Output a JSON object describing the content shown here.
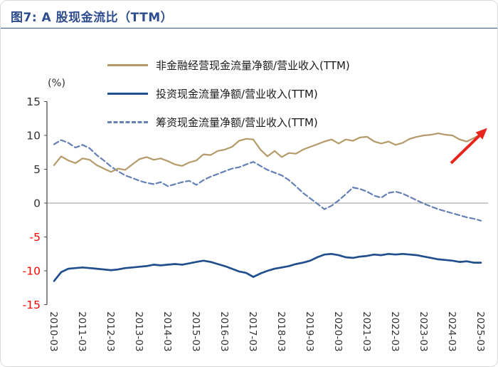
{
  "header": {
    "title": "图7: A 股现金流比（TTM）"
  },
  "colors": {
    "title": "#2e4d8f",
    "divider": "#33518f",
    "card_border": "#d9d9d9",
    "y_tick_positive": "#333333",
    "y_tick_negative": "#fe0000",
    "x_tick": "#333333",
    "zero_line": "#999999",
    "axis_line": "#4a4a4a"
  },
  "chart_data": {
    "type": "line",
    "title": "图7: A 股现金流比（TTM）",
    "unit_label": "(%)",
    "ylim": [
      -15,
      15
    ],
    "y_ticks": [
      15,
      10,
      5,
      0,
      -5,
      -10,
      -15
    ],
    "grid": "zero-line-only",
    "legend_position": "top-left",
    "x_tick_labels": [
      "2010-03",
      "2011-03",
      "2012-03",
      "2013-03",
      "2014-03",
      "2015-03",
      "2016-03",
      "2017-03",
      "2018-03",
      "2019-03",
      "2020-03",
      "2021-03",
      "2022-03",
      "2023-03",
      "2024-03",
      "2025-03"
    ],
    "x_frequency": "quarterly",
    "series": [
      {
        "name": "非金融经营现金流量净额/营业收入(TTM)",
        "color": "#b49a68",
        "style": "solid",
        "values": [
          5.6,
          6.9,
          6.3,
          5.9,
          6.6,
          6.4,
          5.6,
          5.1,
          4.6,
          5.1,
          4.9,
          5.7,
          6.5,
          6.8,
          6.4,
          6.6,
          6.2,
          5.7,
          5.5,
          6.0,
          6.3,
          7.2,
          7.1,
          7.7,
          7.9,
          8.3,
          9.2,
          9.5,
          9.4,
          7.9,
          6.9,
          7.7,
          6.8,
          7.4,
          7.3,
          7.9,
          8.3,
          8.7,
          9.1,
          9.4,
          8.8,
          9.4,
          9.2,
          9.7,
          9.8,
          9.1,
          8.8,
          9.1,
          8.6,
          8.9,
          9.5,
          9.8,
          10.0,
          10.1,
          10.3,
          10.1,
          10.0,
          9.4,
          9.1,
          9.6,
          10.2
        ]
      },
      {
        "name": "投资现金流量净额/营业收入(TTM)",
        "color": "#204f8d",
        "style": "solid",
        "values": [
          -11.5,
          -10.2,
          -9.7,
          -9.6,
          -9.5,
          -9.6,
          -9.7,
          -9.8,
          -9.9,
          -9.8,
          -9.6,
          -9.5,
          -9.4,
          -9.3,
          -9.1,
          -9.2,
          -9.1,
          -9.0,
          -9.1,
          -8.9,
          -8.7,
          -8.5,
          -8.7,
          -9.0,
          -9.3,
          -9.7,
          -10.1,
          -10.3,
          -10.9,
          -10.4,
          -10.0,
          -9.7,
          -9.5,
          -9.3,
          -9.0,
          -8.8,
          -8.5,
          -8.0,
          -7.6,
          -7.5,
          -7.7,
          -8.0,
          -8.1,
          -7.9,
          -7.8,
          -7.6,
          -7.7,
          -7.5,
          -7.6,
          -7.5,
          -7.6,
          -7.7,
          -7.9,
          -8.1,
          -8.3,
          -8.4,
          -8.5,
          -8.7,
          -8.6,
          -8.8,
          -8.8
        ]
      },
      {
        "name": "筹资现金流量净额/营业收入(TTM)",
        "color": "#6580b4",
        "style": "dashed",
        "values": [
          8.7,
          9.3,
          8.9,
          8.2,
          8.6,
          8.1,
          7.1,
          6.3,
          5.4,
          4.7,
          4.1,
          3.7,
          3.3,
          3.0,
          2.8,
          3.1,
          2.5,
          2.8,
          3.1,
          3.3,
          2.7,
          3.4,
          3.9,
          4.3,
          4.7,
          5.1,
          5.3,
          5.7,
          6.1,
          5.5,
          4.9,
          4.5,
          4.1,
          3.4,
          2.5,
          1.5,
          0.7,
          -0.1,
          -0.9,
          -0.4,
          0.4,
          1.3,
          2.3,
          2.1,
          1.7,
          1.1,
          0.8,
          1.5,
          1.7,
          1.4,
          0.9,
          0.4,
          -0.1,
          -0.5,
          -0.9,
          -1.2,
          -1.5,
          -1.8,
          -2.1,
          -2.3,
          -2.6
        ]
      }
    ],
    "annotation_arrow": {
      "color": "#e8251d",
      "from": {
        "index": 55.8,
        "value": 5.9
      },
      "to": {
        "index": 60.6,
        "value": 10.8
      }
    }
  }
}
